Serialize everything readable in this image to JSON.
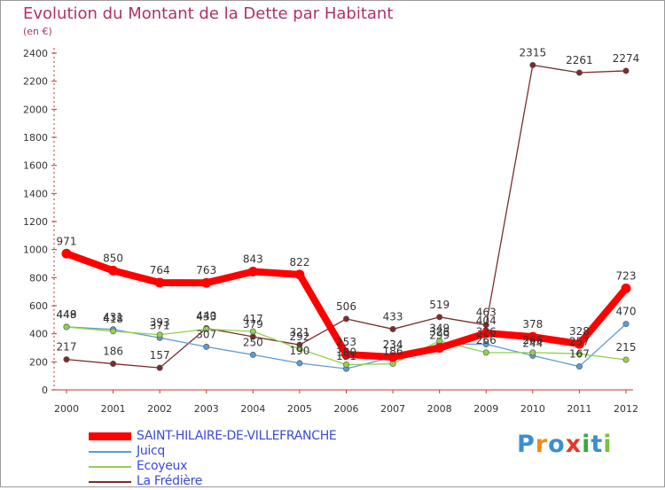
{
  "header": {
    "title": "Evolution du Montant de la Dette par Habitant",
    "unit": "(en €)"
  },
  "brand": {
    "letters": [
      "P",
      "r",
      "o",
      "x",
      "i",
      "t",
      "i"
    ],
    "colors": [
      "#3a8fd0",
      "#f08a1c",
      "#3a8fd0",
      "#e23a2a",
      "#3aa840",
      "#3a8fd0",
      "#7bc043"
    ]
  },
  "chart_data": {
    "type": "line",
    "x": [
      2000,
      2001,
      2002,
      2003,
      2004,
      2005,
      2006,
      2007,
      2008,
      2009,
      2010,
      2011,
      2012
    ],
    "ylim": [
      0,
      2400
    ],
    "yticks": [
      0,
      200,
      400,
      600,
      800,
      1000,
      1200,
      1400,
      1600,
      1800,
      2000,
      2200,
      2400
    ],
    "grid": false,
    "legend_position": "bottom-left",
    "series": [
      {
        "name": "SAINT-HILAIRE-DE-VILLEFRANCHE",
        "color": "#ff0000",
        "values": [
          971,
          850,
          764,
          763,
          843,
          822,
          253,
          234,
          299,
          404,
          378,
          328,
          723
        ],
        "labels": [
          "971",
          "850",
          "764",
          "763",
          "843",
          "822",
          "253",
          "234",
          "299",
          "404",
          "378",
          "328",
          "723"
        ]
      },
      {
        "name": "Juicq",
        "color": "#5b9bd5",
        "values": [
          449,
          431,
          371,
          307,
          250,
          190,
          151,
          234,
          326,
          326,
          244,
          167,
          470
        ],
        "labels": [
          "449",
          "431",
          "371",
          "307",
          "250",
          "190",
          "151",
          "234",
          "326",
          "326",
          "244",
          "167",
          "470"
        ]
      },
      {
        "name": "Ecoyeux",
        "color": "#92d050",
        "values": [
          448,
          418,
          393,
          433,
          417,
          292,
          180,
          186,
          349,
          266,
          266,
          257,
          215
        ],
        "labels": [
          "448",
          "418",
          "393",
          "433",
          "417",
          "292",
          "180",
          "186",
          "349",
          "266",
          "266",
          "257",
          "215"
        ]
      },
      {
        "name": "La Frédière",
        "color": "#7b2c2c",
        "values": [
          217,
          186,
          157,
          440,
          379,
          321,
          506,
          433,
          519,
          463,
          2315,
          2261,
          2274
        ],
        "labels": [
          "217",
          "186",
          "157",
          "440",
          "379",
          "321",
          "506",
          "433",
          "519",
          "463",
          "2315",
          "2261",
          "2274"
        ]
      }
    ]
  }
}
